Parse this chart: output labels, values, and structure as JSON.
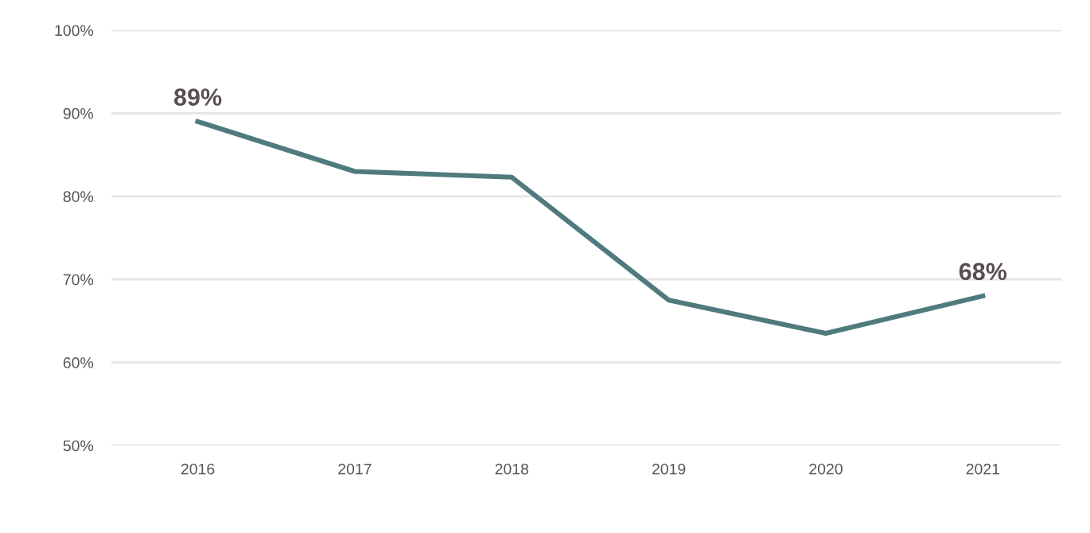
{
  "chart_data": {
    "type": "line",
    "categories": [
      "2016",
      "2017",
      "2018",
      "2019",
      "2020",
      "2021"
    ],
    "series": [
      {
        "color": "#4f7b7e",
        "values": [
          89,
          83,
          82.3,
          67.5,
          63.5,
          68
        ],
        "value_labels": [
          "89%",
          null,
          null,
          null,
          null,
          "68%"
        ]
      }
    ],
    "ylim": [
      50,
      100
    ],
    "yticks": [
      {
        "value": 50,
        "label": "50%"
      },
      {
        "value": 60,
        "label": "60%"
      },
      {
        "value": 70,
        "label": "70%"
      },
      {
        "value": 80,
        "label": "80%"
      },
      {
        "value": 90,
        "label": "90%"
      },
      {
        "value": 100,
        "label": "100%"
      }
    ],
    "grid": "y",
    "legend": false,
    "marker": "none",
    "line_style": "solid"
  }
}
